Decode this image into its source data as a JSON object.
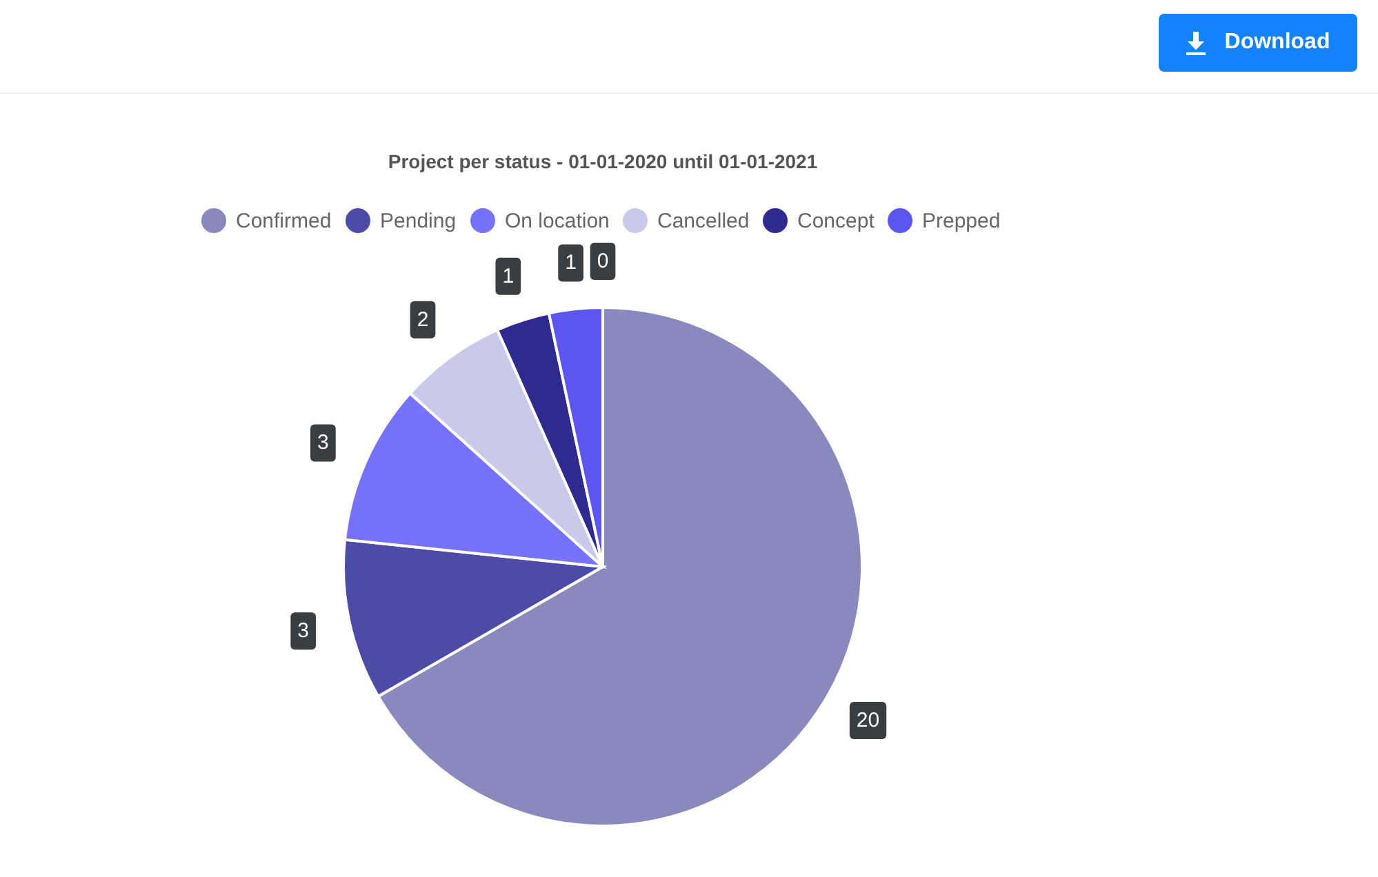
{
  "chart_data": {
    "type": "pie",
    "title": "Project per status - 01-01-2020 until 01-01-2021",
    "categories": [
      "Confirmed",
      "Pending",
      "On location",
      "Cancelled",
      "Concept",
      "Prepped",
      null
    ],
    "values": [
      20,
      3,
      3,
      2,
      1,
      1,
      0
    ],
    "value_labels": [
      "20",
      "3",
      "3",
      "2",
      "1",
      "1",
      "0"
    ],
    "colors": [
      "#8a89be",
      "#4d4aa8",
      "#7673fa",
      "#c9c9e9",
      "#2e2a90",
      "#5d55f0",
      "#a3a3d9"
    ],
    "legend": "top",
    "annotations": [
      "Download"
    ]
  }
}
